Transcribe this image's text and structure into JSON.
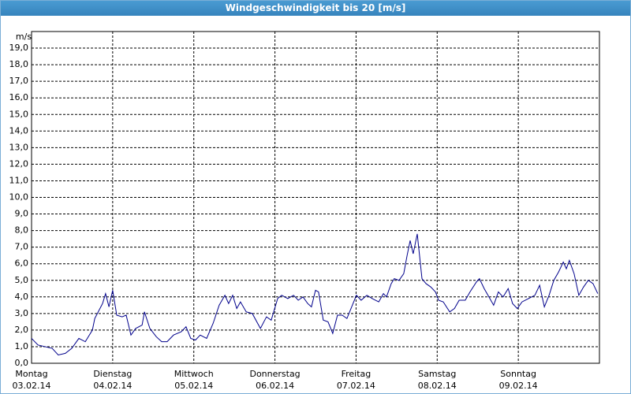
{
  "chart_data": {
    "type": "line",
    "title": "Windgeschwindigkeit bis 20 [m/s]",
    "y_label": "m/s",
    "color": "#00008b",
    "grid": true,
    "xlim": [
      0,
      168
    ],
    "xticks": [
      {
        "value": 0,
        "label": "Montag",
        "date": "03.02.14"
      },
      {
        "value": 24,
        "label": "Dienstag",
        "date": "04.02.14"
      },
      {
        "value": 48,
        "label": "Mittwoch",
        "date": "05.02.14"
      },
      {
        "value": 72,
        "label": "Donnerstag",
        "date": "06.02.14"
      },
      {
        "value": 96,
        "label": "Freitag",
        "date": "07.02.14"
      },
      {
        "value": 120,
        "label": "Samstag",
        "date": "08.02.14"
      },
      {
        "value": 144,
        "label": "Sonntag",
        "date": "09.02.14"
      }
    ],
    "ylim": [
      0,
      20
    ],
    "yticks": [
      {
        "value": 0,
        "label": "0,0"
      },
      {
        "value": 1,
        "label": "1,0"
      },
      {
        "value": 2,
        "label": "2,0"
      },
      {
        "value": 3,
        "label": "3,0"
      },
      {
        "value": 4,
        "label": "4,0"
      },
      {
        "value": 5,
        "label": "5,0"
      },
      {
        "value": 6,
        "label": "6,0"
      },
      {
        "value": 7,
        "label": "7,0"
      },
      {
        "value": 8,
        "label": "8,0"
      },
      {
        "value": 9,
        "label": "9,0"
      },
      {
        "value": 10,
        "label": "10,0"
      },
      {
        "value": 11,
        "label": "11,0"
      },
      {
        "value": 12,
        "label": "12,0"
      },
      {
        "value": 13,
        "label": "13,0"
      },
      {
        "value": 14,
        "label": "14,0"
      },
      {
        "value": 15,
        "label": "15,0"
      },
      {
        "value": 16,
        "label": "16,0"
      },
      {
        "value": 17,
        "label": "17,0"
      },
      {
        "value": 18,
        "label": "18,0"
      },
      {
        "value": 19,
        "label": "19,0"
      }
    ],
    "x": [
      0.0,
      1.9,
      4.0,
      6.1,
      7.9,
      10.0,
      11.9,
      14.0,
      15.9,
      18.0,
      18.7,
      21.0,
      21.9,
      22.9,
      24.0,
      25.2,
      26.8,
      28.0,
      29.4,
      30.8,
      32.7,
      33.4,
      35.0,
      36.9,
      38.5,
      40.1,
      42.0,
      44.3,
      45.7,
      47.1,
      48.5,
      49.9,
      51.8,
      53.7,
      55.5,
      57.2,
      58.3,
      59.5,
      60.7,
      61.8,
      63.5,
      65.3,
      67.7,
      69.5,
      70.9,
      72.8,
      74.0,
      75.8,
      77.5,
      78.9,
      80.3,
      81.7,
      82.8,
      84.0,
      84.9,
      86.3,
      87.7,
      89.1,
      90.5,
      91.9,
      93.3,
      94.7,
      96.1,
      97.5,
      99.2,
      100.8,
      102.7,
      104.1,
      105.0,
      106.4,
      107.3,
      108.7,
      110.1,
      111.1,
      112.0,
      112.9,
      114.1,
      115.5,
      116.7,
      118.1,
      119.5,
      120.4,
      121.8,
      123.7,
      125.1,
      126.5,
      128.3,
      129.7,
      131.6,
      132.5,
      133.9,
      135.3,
      136.7,
      138.1,
      139.5,
      141.0,
      142.3,
      143.7,
      145.1,
      147.0,
      148.9,
      150.3,
      151.7,
      153.1,
      154.5,
      155.9,
      157.3,
      158.2,
      159.1,
      160.5,
      161.9,
      163.3,
      164.7,
      166.1,
      167.5
    ],
    "values": [
      1.5,
      1.1,
      1.0,
      0.9,
      0.5,
      0.6,
      0.9,
      1.5,
      1.3,
      2.0,
      2.7,
      3.6,
      4.2,
      3.4,
      4.4,
      2.9,
      2.8,
      2.9,
      1.7,
      2.1,
      2.3,
      3.1,
      2.1,
      1.6,
      1.3,
      1.3,
      1.7,
      1.9,
      2.2,
      1.5,
      1.4,
      1.7,
      1.5,
      2.4,
      3.5,
      4.1,
      3.6,
      4.1,
      3.3,
      3.7,
      3.1,
      3.0,
      2.1,
      2.8,
      2.6,
      3.9,
      4.1,
      3.9,
      4.1,
      3.8,
      4.0,
      3.6,
      3.4,
      4.4,
      4.3,
      2.6,
      2.5,
      1.8,
      2.9,
      2.9,
      2.7,
      3.4,
      4.1,
      3.8,
      4.1,
      3.9,
      3.7,
      4.2,
      4.0,
      4.8,
      5.1,
      5.0,
      5.4,
      6.5,
      7.4,
      6.6,
      7.8,
      5.1,
      4.8,
      4.6,
      4.3,
      3.8,
      3.7,
      3.1,
      3.3,
      3.8,
      3.8,
      4.3,
      4.9,
      5.1,
      4.5,
      4.0,
      3.5,
      4.3,
      4.0,
      4.5,
      3.6,
      3.3,
      3.7,
      3.9,
      4.1,
      4.7,
      3.4,
      4.1,
      5.0,
      5.5,
      6.1,
      5.7,
      6.2,
      5.4,
      4.1,
      4.6,
      5.0,
      4.8,
      4.2
    ]
  }
}
